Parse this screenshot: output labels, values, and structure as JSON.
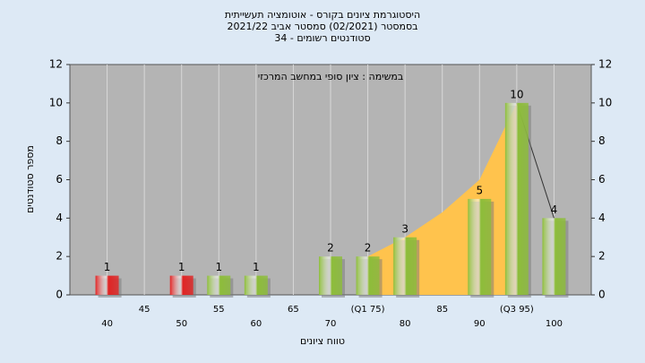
{
  "chart_data": {
    "type": "bar",
    "title": [
      "היסטוגרמת ציונים בקורס - אוטומציה תעשייתית",
      "בסמסטר (02/2021) סמסטר אביב 2021/22",
      "סטודנטים רשומים - 34"
    ],
    "annotation": "במשימה : ציון סופי במחשב המרכזי",
    "x_label": "טווח ציונים",
    "y_label": "מספר סטודנטים",
    "x": [
      40,
      50,
      55,
      60,
      70,
      75,
      80,
      90,
      95,
      100
    ],
    "values": [
      1,
      1,
      1,
      1,
      2,
      2,
      3,
      5,
      10,
      4
    ],
    "colors": [
      "#e02424",
      "#e02424",
      "#8dbd3a",
      "#8dbd3a",
      "#8dbd3a",
      "#8dbd3a",
      "#8dbd3a",
      "#8dbd3a",
      "#8dbd3a",
      "#8dbd3a"
    ],
    "area": {
      "x": [
        75,
        80,
        85,
        90,
        95
      ],
      "values": [
        2,
        3,
        4.3,
        6,
        10
      ],
      "color": "#ffc34d"
    },
    "line": {
      "x": [
        95,
        100
      ],
      "values": [
        10,
        4
      ],
      "color": "#333333"
    },
    "xlim": [
      35,
      105
    ],
    "xticks": [
      40,
      45,
      50,
      55,
      60,
      65,
      70,
      {
        "value": 75,
        "label": "(Q1 75)"
      },
      80,
      85,
      90,
      {
        "value": 95,
        "label": "(Q3 95)"
      },
      100
    ],
    "ylim": [
      0,
      12
    ],
    "yticks": [
      0,
      2,
      4,
      6,
      8,
      10,
      12
    ],
    "y2lim": [
      0,
      12
    ],
    "y2ticks": [
      0,
      2,
      4,
      6,
      8,
      10,
      12
    ],
    "plot_color": "#b4b4b4",
    "grid": true
  }
}
